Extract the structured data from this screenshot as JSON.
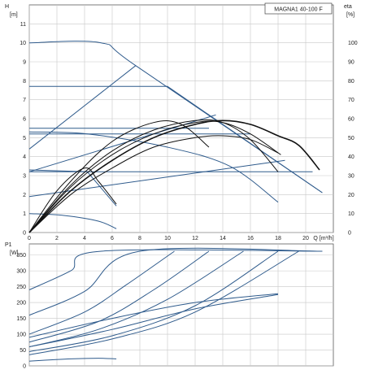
{
  "chart_data": [
    {
      "type": "line",
      "title": "MAGNA1 40-100 F",
      "xlabel": "Q [m³/h]",
      "ylabel": "H [m]",
      "ylabel_unit": "[m]",
      "ylabel_name": "H",
      "y2label_name": "eta",
      "y2label_unit": "[%]",
      "xlim": [
        0,
        22
      ],
      "ylim": [
        0,
        12
      ],
      "y2lim": [
        0,
        120
      ],
      "xticks": [
        0,
        2,
        4,
        6,
        8,
        10,
        12,
        14,
        16,
        18,
        20
      ],
      "yticks": [
        0,
        1,
        2,
        3,
        4,
        5,
        6,
        7,
        8,
        9,
        10,
        11
      ],
      "y2ticks": [
        0,
        10,
        20,
        30,
        40,
        50,
        60,
        70,
        80,
        90,
        100
      ],
      "grid": true,
      "colors": {
        "pump_curves": "#2f5b8c",
        "efficiency_curves": "#111111"
      },
      "series": [
        {
          "kind": "pump",
          "x": [
            0,
            5.2,
            7.7,
            21.2
          ],
          "y": [
            10.0,
            10.0,
            8.8,
            2.1
          ]
        },
        {
          "kind": "pump",
          "x": [
            0,
            10.0,
            21.2
          ],
          "y": [
            7.7,
            7.7,
            2.1
          ]
        },
        {
          "kind": "pump",
          "x": [
            0,
            7.7
          ],
          "y": [
            4.4,
            8.8
          ]
        },
        {
          "kind": "pump",
          "x": [
            0,
            13.5
          ],
          "y": [
            3.2,
            6.2
          ]
        },
        {
          "kind": "pump",
          "x": [
            0,
            13.0
          ],
          "y": [
            5.5,
            5.5
          ]
        },
        {
          "kind": "pump",
          "x": [
            0,
            16.0
          ],
          "y": [
            5.2,
            5.2
          ]
        },
        {
          "kind": "pump",
          "x": [
            0,
            20.5
          ],
          "y": [
            3.2,
            3.2
          ]
        },
        {
          "kind": "pump",
          "x": [
            0,
            18.5
          ],
          "y": [
            1.9,
            3.8
          ]
        },
        {
          "kind": "pump",
          "x": [
            0,
            4.2,
            10.0,
            14.5,
            18.0
          ],
          "y": [
            5.3,
            5.2,
            4.5,
            3.5,
            1.6
          ]
        },
        {
          "kind": "pump",
          "x": [
            0,
            4.2,
            6.3
          ],
          "y": [
            3.3,
            3.2,
            1.4
          ]
        },
        {
          "kind": "pump",
          "x": [
            0,
            2.5,
            5.0,
            6.3
          ],
          "y": [
            1.0,
            0.9,
            0.6,
            0.2
          ]
        },
        {
          "kind": "efficiency",
          "x": [
            0,
            3,
            6,
            9,
            12,
            14,
            16,
            18,
            19.5,
            21
          ],
          "y": [
            0,
            22,
            38,
            50,
            57,
            59,
            57,
            51,
            46,
            33
          ]
        },
        {
          "kind": "efficiency",
          "x": [
            0,
            3,
            6,
            9,
            12,
            14,
            16,
            18.2
          ],
          "y": [
            0,
            24,
            41,
            52,
            58,
            58,
            52,
            41
          ]
        },
        {
          "kind": "efficiency",
          "x": [
            0,
            3,
            6,
            9,
            12,
            14,
            16,
            18
          ],
          "y": [
            0,
            25,
            43,
            54,
            59,
            58,
            49,
            32
          ]
        },
        {
          "kind": "efficiency",
          "x": [
            0,
            3,
            6,
            9,
            11,
            13
          ],
          "y": [
            0,
            27,
            48,
            58,
            57,
            45
          ]
        },
        {
          "kind": "efficiency",
          "x": [
            0,
            3,
            6,
            9,
            12,
            14,
            16,
            18
          ],
          "y": [
            0,
            20,
            34,
            45,
            50,
            51,
            49,
            42
          ]
        },
        {
          "kind": "efficiency",
          "x": [
            0,
            2,
            4,
            5,
            6.3
          ],
          "y": [
            0,
            22,
            34,
            27,
            15
          ]
        }
      ]
    },
    {
      "type": "line",
      "xlabel": "",
      "ylabel_name": "P1",
      "ylabel_unit": "[W]",
      "xlim": [
        0,
        22
      ],
      "ylim": [
        0,
        385
      ],
      "yticks": [
        0,
        50,
        100,
        150,
        200,
        250,
        300,
        350
      ],
      "grid": true,
      "colors": {
        "power_curves": "#2f5b8c"
      },
      "series": [
        {
          "x": [
            0,
            3,
            5.2,
            21.2
          ],
          "y": [
            240,
            300,
            362,
            362
          ]
        },
        {
          "x": [
            0,
            4,
            8,
            21.2
          ],
          "y": [
            160,
            235,
            362,
            362
          ]
        },
        {
          "x": [
            0,
            4,
            7,
            10.5
          ],
          "y": [
            100,
            170,
            255,
            362
          ]
        },
        {
          "x": [
            0,
            5,
            9,
            13.0
          ],
          "y": [
            75,
            140,
            240,
            362
          ]
        },
        {
          "x": [
            0,
            5,
            10,
            15.5
          ],
          "y": [
            60,
            115,
            210,
            362
          ]
        },
        {
          "x": [
            0,
            6,
            12,
            18.0
          ],
          "y": [
            45,
            95,
            190,
            362
          ]
        },
        {
          "x": [
            0,
            6,
            12,
            19.5
          ],
          "y": [
            35,
            85,
            170,
            362
          ]
        },
        {
          "x": [
            0,
            6,
            12,
            18
          ],
          "y": [
            90,
            150,
            200,
            228
          ]
        },
        {
          "x": [
            0,
            6,
            12,
            18
          ],
          "y": [
            60,
            115,
            180,
            225
          ]
        },
        {
          "x": [
            0,
            3,
            5,
            6.3
          ],
          "y": [
            15,
            22,
            24,
            22
          ]
        }
      ]
    }
  ]
}
